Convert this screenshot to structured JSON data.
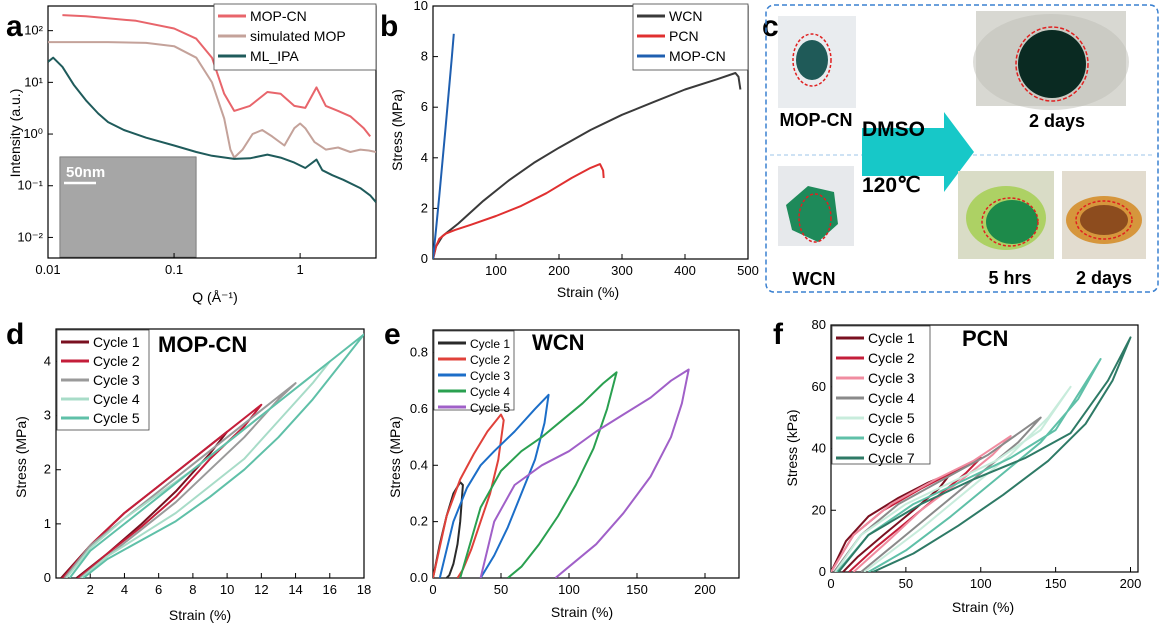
{
  "panels": {
    "a": {
      "label": "a",
      "xlabel": "Q (Å⁻¹)",
      "ylabel": "Intensity (a.u.)",
      "inset_scale": "50nm"
    },
    "b": {
      "label": "b",
      "xlabel": "Strain (%)",
      "ylabel": "Stress (MPa)"
    },
    "c": {
      "label": "c",
      "solvent": "DMSO",
      "temperature": "120℃",
      "photos": {
        "mop_before": "MOP-CN",
        "mop_after": "2 days",
        "wcn_before": "WCN",
        "wcn_mid": "5 hrs",
        "wcn_after": "2 days"
      }
    },
    "d": {
      "label": "d",
      "title": "MOP-CN",
      "xlabel": "Strain (%)",
      "ylabel": "Stress (MPa)"
    },
    "e": {
      "label": "e",
      "title": "WCN",
      "xlabel": "Strain (%)",
      "ylabel": "Stress (MPa)"
    },
    "f": {
      "label": "f",
      "title": "PCN",
      "xlabel": "Strain (%)",
      "ylabel": "Stress (kPa)"
    }
  },
  "chart_data": [
    {
      "id": "a",
      "type": "line",
      "x_scale": "log",
      "y_scale": "log",
      "xlim": [
        0.01,
        4
      ],
      "ylim": [
        0.004,
        300
      ],
      "xticks": [
        0.01,
        0.1,
        1
      ],
      "xtick_labels": [
        "0.01",
        "0.1",
        "1"
      ],
      "yticks": [
        0.01,
        0.1,
        1,
        10,
        100
      ],
      "ytick_labels": [
        "10⁻²",
        "10⁻¹",
        "10⁰",
        "10¹",
        "10²"
      ],
      "legend": "top-right",
      "series": [
        {
          "name": "MOP-CN",
          "color": "#e8656b",
          "x": [
            0.013,
            0.02,
            0.05,
            0.1,
            0.15,
            0.2,
            0.25,
            0.3,
            0.4,
            0.55,
            0.7,
            0.9,
            1.1,
            1.35,
            1.6,
            2,
            2.5,
            3.2,
            3.6
          ],
          "y": [
            200,
            190,
            155,
            110,
            70,
            30,
            6,
            2.8,
            3.5,
            6.5,
            6,
            3.5,
            3.2,
            8,
            3.5,
            2.8,
            2.2,
            1.3,
            0.9
          ]
        },
        {
          "name": "simulated MOP",
          "color": "#c4a29a",
          "x": [
            0.01,
            0.03,
            0.06,
            0.1,
            0.15,
            0.2,
            0.25,
            0.28,
            0.3,
            0.35,
            0.42,
            0.5,
            0.6,
            0.75,
            0.9,
            1.0,
            1.1,
            1.3,
            1.6,
            2,
            2.5,
            3,
            3.5,
            4
          ],
          "y": [
            60,
            60,
            58,
            50,
            30,
            10,
            2,
            0.5,
            0.35,
            0.5,
            1.0,
            1.2,
            0.9,
            0.6,
            1.3,
            1.6,
            1.3,
            0.7,
            0.5,
            0.55,
            0.45,
            0.5,
            0.48,
            0.45
          ]
        },
        {
          "name": "ML_IPA",
          "color": "#1f5b5b",
          "x": [
            0.01,
            0.011,
            0.013,
            0.016,
            0.02,
            0.025,
            0.03,
            0.04,
            0.06,
            0.1,
            0.15,
            0.2,
            0.3,
            0.4,
            0.55,
            0.7,
            0.9,
            1.1,
            1.35,
            1.5,
            1.8,
            2.2,
            3,
            3.6,
            4
          ],
          "y": [
            25,
            30,
            20,
            9,
            4.5,
            2.5,
            1.7,
            1.2,
            0.85,
            0.6,
            0.45,
            0.38,
            0.33,
            0.34,
            0.4,
            0.35,
            0.28,
            0.22,
            0.32,
            0.2,
            0.16,
            0.13,
            0.09,
            0.065,
            0.048
          ]
        }
      ]
    },
    {
      "id": "b",
      "type": "line",
      "xlim": [
        0,
        500
      ],
      "ylim": [
        0,
        10
      ],
      "xticks": [
        100,
        200,
        300,
        400,
        500
      ],
      "yticks": [
        0,
        2,
        4,
        6,
        8,
        10
      ],
      "legend": "top-right",
      "series": [
        {
          "name": "WCN",
          "color": "#3a3a3a",
          "x": [
            0,
            5,
            15,
            40,
            80,
            120,
            160,
            200,
            250,
            300,
            350,
            400,
            450,
            480,
            485,
            488
          ],
          "y": [
            0,
            0.5,
            0.9,
            1.4,
            2.3,
            3.1,
            3.8,
            4.4,
            5.1,
            5.7,
            6.2,
            6.7,
            7.1,
            7.35,
            7.2,
            6.7
          ]
        },
        {
          "name": "PCN",
          "color": "#e03030",
          "x": [
            0,
            5,
            10,
            20,
            35,
            60,
            100,
            140,
            180,
            220,
            250,
            265,
            270,
            271
          ],
          "y": [
            0,
            0.5,
            0.8,
            1.0,
            1.15,
            1.35,
            1.7,
            2.1,
            2.6,
            3.2,
            3.6,
            3.75,
            3.5,
            3.2
          ]
        },
        {
          "name": "MOP-CN",
          "color": "#1f5fb0",
          "x": [
            0,
            5,
            10,
            20,
            30,
            33
          ],
          "y": [
            0,
            1.2,
            2.5,
            5.2,
            8.0,
            8.9
          ]
        }
      ]
    },
    {
      "id": "d",
      "type": "line",
      "xlim": [
        0,
        18
      ],
      "ylim": [
        0,
        4.6
      ],
      "xticks": [
        2,
        4,
        6,
        8,
        10,
        12,
        14,
        16,
        18
      ],
      "yticks": [
        0,
        1,
        2,
        3,
        4
      ],
      "legend": "top-left",
      "series": [
        {
          "name": "Cycle 1",
          "color": "#7a1020",
          "x": [
            0.3,
            2,
            4,
            6,
            8,
            10,
            9,
            7,
            5,
            3,
            1.2
          ],
          "y": [
            0,
            0.6,
            1.2,
            1.7,
            2.2,
            2.7,
            2.3,
            1.6,
            1.0,
            0.45,
            0
          ]
        },
        {
          "name": "Cycle 2",
          "color": "#c41e3a",
          "x": [
            0.4,
            2,
            4,
            6,
            8,
            10,
            12,
            11,
            9,
            7,
            5,
            3,
            1.3
          ],
          "y": [
            0,
            0.6,
            1.2,
            1.7,
            2.2,
            2.7,
            3.2,
            2.8,
            2.2,
            1.5,
            0.95,
            0.45,
            0
          ]
        },
        {
          "name": "Cycle 3",
          "color": "#9a9a9a",
          "x": [
            0.5,
            2,
            4,
            6,
            8,
            10,
            12,
            14,
            13,
            11,
            9,
            7,
            5,
            3,
            1.4
          ],
          "y": [
            0,
            0.6,
            1.1,
            1.6,
            2.1,
            2.6,
            3.1,
            3.6,
            3.3,
            2.6,
            2.0,
            1.4,
            0.9,
            0.4,
            0
          ]
        },
        {
          "name": "Cycle 4",
          "color": "#a8dcc8",
          "x": [
            0.6,
            2,
            4,
            6,
            8,
            10,
            12,
            14,
            16,
            15,
            13,
            11,
            9,
            7,
            5,
            3,
            1.5
          ],
          "y": [
            0,
            0.55,
            1.1,
            1.55,
            2.0,
            2.5,
            3.0,
            3.5,
            4.0,
            3.6,
            2.9,
            2.2,
            1.7,
            1.2,
            0.8,
            0.4,
            0
          ]
        },
        {
          "name": "Cycle 5",
          "color": "#5fc0a8",
          "x": [
            0.8,
            2,
            4,
            6,
            8,
            10,
            12,
            14,
            16,
            18,
            17,
            15,
            13,
            11,
            9,
            7,
            5,
            3,
            1.6
          ],
          "y": [
            0,
            0.5,
            1.0,
            1.5,
            2.0,
            2.5,
            3.0,
            3.5,
            4.0,
            4.5,
            4.1,
            3.3,
            2.6,
            2.0,
            1.5,
            1.05,
            0.7,
            0.35,
            0
          ]
        }
      ]
    },
    {
      "id": "e",
      "type": "line",
      "xlim": [
        0,
        225
      ],
      "ylim": [
        0,
        0.88
      ],
      "xticks": [
        0,
        50,
        100,
        150,
        200
      ],
      "yticks": [
        0.0,
        0.2,
        0.4,
        0.6,
        0.8
      ],
      "legend": "top-left",
      "series": [
        {
          "name": "Cycle 1",
          "color": "#2a2a2a",
          "x": [
            0,
            5,
            10,
            15,
            20,
            22,
            20,
            18,
            15,
            12,
            10
          ],
          "y": [
            0,
            0.12,
            0.22,
            0.3,
            0.34,
            0.33,
            0.2,
            0.12,
            0.05,
            0.01,
            0
          ]
        },
        {
          "name": "Cycle 2",
          "color": "#e0413a",
          "x": [
            0,
            10,
            20,
            30,
            40,
            50,
            52,
            48,
            42,
            35,
            28,
            22,
            18
          ],
          "y": [
            0,
            0.22,
            0.35,
            0.44,
            0.52,
            0.58,
            0.56,
            0.42,
            0.3,
            0.2,
            0.1,
            0.03,
            0
          ]
        },
        {
          "name": "Cycle 3",
          "color": "#1c6ec8",
          "x": [
            5,
            15,
            25,
            35,
            45,
            60,
            75,
            85,
            82,
            75,
            65,
            55,
            45,
            35
          ],
          "y": [
            0,
            0.2,
            0.32,
            0.4,
            0.45,
            0.52,
            0.6,
            0.65,
            0.55,
            0.42,
            0.3,
            0.18,
            0.08,
            0
          ]
        },
        {
          "name": "Cycle 4",
          "color": "#2aa050",
          "x": [
            20,
            35,
            50,
            65,
            80,
            95,
            110,
            125,
            135,
            128,
            118,
            105,
            92,
            78,
            65,
            55
          ],
          "y": [
            0,
            0.25,
            0.38,
            0.45,
            0.5,
            0.56,
            0.62,
            0.69,
            0.73,
            0.6,
            0.46,
            0.33,
            0.22,
            0.12,
            0.04,
            0
          ]
        },
        {
          "name": "Cycle 5",
          "color": "#a060c8",
          "x": [
            35,
            45,
            60,
            80,
            100,
            120,
            140,
            160,
            175,
            188,
            183,
            175,
            160,
            140,
            120,
            100,
            90
          ],
          "y": [
            0,
            0.2,
            0.33,
            0.4,
            0.45,
            0.52,
            0.58,
            0.64,
            0.7,
            0.74,
            0.62,
            0.5,
            0.36,
            0.23,
            0.12,
            0.04,
            0
          ]
        }
      ]
    },
    {
      "id": "f",
      "type": "line",
      "xlim": [
        0,
        205
      ],
      "ylim": [
        0,
        80
      ],
      "xticks": [
        0,
        50,
        100,
        150,
        200
      ],
      "yticks": [
        0,
        20,
        40,
        60,
        80
      ],
      "legend": "top-left",
      "series": [
        {
          "name": "Cycle 1",
          "color": "#7a1020",
          "x": [
            0,
            10,
            25,
            45,
            65,
            80,
            72,
            55,
            35,
            18,
            8
          ],
          "y": [
            0,
            10,
            18,
            24,
            29,
            32,
            27,
            20,
            12,
            5,
            0
          ]
        },
        {
          "name": "Cycle 2",
          "color": "#c41e3a",
          "x": [
            0,
            15,
            35,
            60,
            80,
            100,
            90,
            70,
            50,
            30,
            12
          ],
          "y": [
            0,
            12,
            20,
            27,
            32,
            37,
            32,
            24,
            16,
            8,
            0
          ]
        },
        {
          "name": "Cycle 3",
          "color": "#f08ca0",
          "x": [
            0,
            15,
            40,
            70,
            95,
            120,
            108,
            85,
            60,
            38,
            15
          ],
          "y": [
            0,
            12,
            22,
            30,
            36,
            44,
            38,
            29,
            20,
            10,
            0
          ]
        },
        {
          "name": "Cycle 4",
          "color": "#8a8a8a",
          "x": [
            2,
            20,
            45,
            75,
            105,
            140,
            125,
            100,
            75,
            50,
            20
          ],
          "y": [
            0,
            12,
            22,
            30,
            38,
            50,
            42,
            32,
            22,
            12,
            0
          ]
        },
        {
          "name": "Cycle 5",
          "color": "#c8ecdc",
          "x": [
            3,
            20,
            50,
            80,
            110,
            140,
            160,
            145,
            120,
            90,
            60,
            22
          ],
          "y": [
            0,
            12,
            22,
            29,
            36,
            46,
            60,
            50,
            38,
            26,
            14,
            0
          ]
        },
        {
          "name": "Cycle 6",
          "color": "#5fc0a8",
          "x": [
            4,
            25,
            55,
            90,
            120,
            150,
            180,
            165,
            140,
            110,
            80,
            50,
            25
          ],
          "y": [
            0,
            12,
            22,
            30,
            37,
            46,
            69,
            56,
            42,
            30,
            18,
            7,
            0
          ]
        },
        {
          "name": "Cycle 7",
          "color": "#2e7a66",
          "x": [
            5,
            25,
            60,
            95,
            130,
            160,
            185,
            200,
            188,
            170,
            145,
            115,
            85,
            55,
            28
          ],
          "y": [
            0,
            12,
            22,
            30,
            37,
            45,
            62,
            76,
            62,
            48,
            36,
            25,
            15,
            6,
            0
          ]
        }
      ]
    }
  ]
}
